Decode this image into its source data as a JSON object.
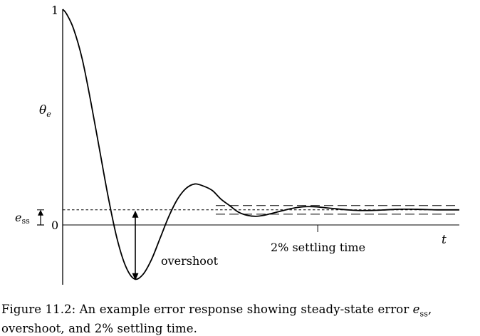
{
  "chart_data": {
    "type": "line",
    "title": "",
    "xlabel": "t",
    "ylabel": "θe",
    "ylabel_sub": "e",
    "ylim": [
      -0.26,
      1.0
    ],
    "xlim": [
      0,
      18.3
    ],
    "ytick_labels": [
      "1",
      "0"
    ],
    "yticks": [
      1,
      0
    ],
    "ess_value": 0.07,
    "ess_label": "e",
    "ess_sub": "ss",
    "settling_band": 0.02,
    "settling_time": 11.8,
    "settling_label": "2% settling time",
    "overshoot_label": "overshoot",
    "series": [
      {
        "name": "θe",
        "x": [
          0,
          0.17,
          0.5,
          0.9,
          1.3,
          1.7,
          2.1,
          2.5,
          2.9,
          3.3,
          3.7,
          4.1,
          4.5,
          4.9,
          5.3,
          5.7,
          6.1,
          6.5,
          6.9,
          7.3,
          7.7,
          8.1,
          8.5,
          8.9,
          9.3,
          9.7,
          10.1,
          10.5,
          10.9,
          11.3,
          11.7,
          12.1,
          12.5,
          12.9,
          13.3,
          13.7,
          14.1,
          14.5,
          14.9,
          15.3,
          15.7,
          16.1,
          16.5,
          16.9,
          17.3,
          17.7,
          18.3
        ],
        "values": [
          1.0,
          0.98,
          0.91,
          0.77,
          0.57,
          0.35,
          0.13,
          -0.06,
          -0.19,
          -0.25,
          -0.23,
          -0.16,
          -0.06,
          0.04,
          0.12,
          0.17,
          0.19,
          0.18,
          0.16,
          0.12,
          0.09,
          0.06,
          0.045,
          0.04,
          0.045,
          0.055,
          0.065,
          0.075,
          0.082,
          0.085,
          0.084,
          0.08,
          0.076,
          0.072,
          0.069,
          0.067,
          0.067,
          0.068,
          0.07,
          0.072,
          0.073,
          0.073,
          0.072,
          0.071,
          0.07,
          0.07,
          0.07
        ]
      }
    ]
  },
  "caption": "Figure 11.2: An example error response showing steady-state error e_ss, overshoot, and 2% settling time.",
  "caption_parts": {
    "before": "Figure 11.2: An example error response showing steady-state error ",
    "symbol": "e",
    "sub": "ss",
    "after": ", overshoot, and 2% settling time."
  }
}
